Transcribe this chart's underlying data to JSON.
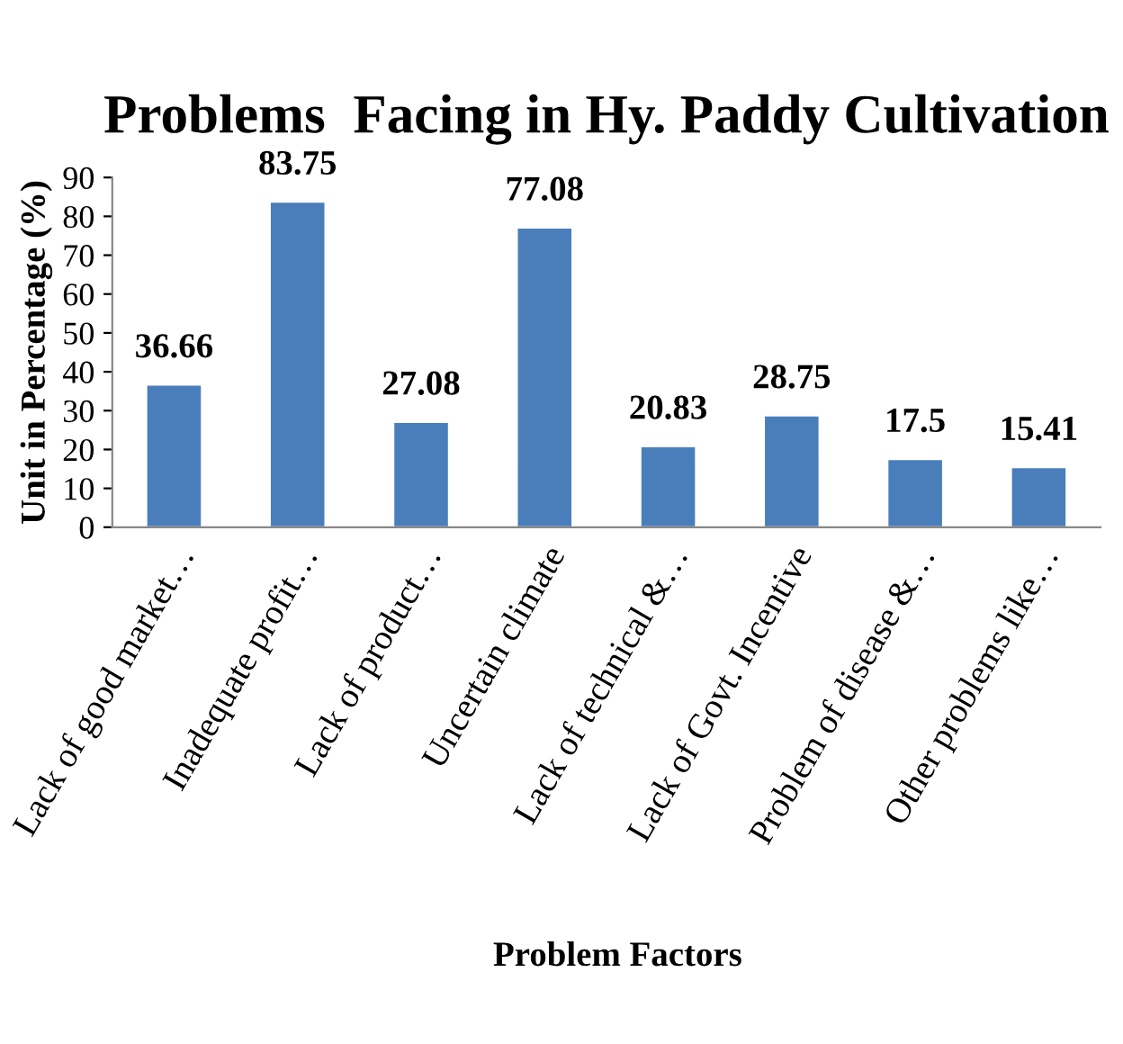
{
  "chart_data": {
    "type": "bar",
    "title": "Problems  Facing in Hy. Paddy Cultivation",
    "xlabel": "Problem Factors",
    "ylabel": "Unit in Percentage (%)",
    "categories": [
      "Lack of good market…",
      "Inadequate profit…",
      "Lack of product…",
      "Uncertain climate",
      "Lack of technical &…",
      "Lack of Govt. Incentive",
      "Problem of disease &…",
      "Other problems like…"
    ],
    "values": [
      36.66,
      83.75,
      27.08,
      77.08,
      20.83,
      28.75,
      17.5,
      15.41
    ],
    "color": "#4a7ebb",
    "ylim": [
      0,
      90
    ],
    "yticks": [
      0,
      10,
      20,
      30,
      40,
      50,
      60,
      70,
      80,
      90
    ],
    "data_labels": true,
    "grid": false,
    "legend": false
  }
}
